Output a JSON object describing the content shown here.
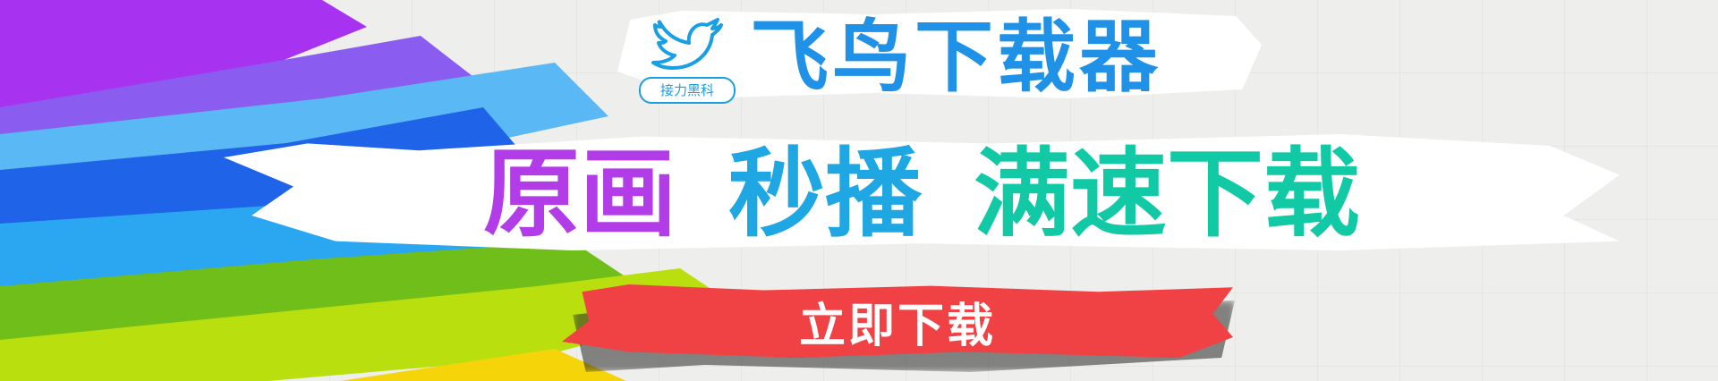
{
  "brand": {
    "app_title": "飞鸟下载器",
    "logo_tag": "接力黑科"
  },
  "slogan": {
    "part1": "原画",
    "part2": "秒播",
    "part3": "满速下载"
  },
  "cta": {
    "download_label": "立即下载"
  },
  "icons": [
    "bird-logo-icon"
  ],
  "colors": {
    "title_blue": "#1f92e8",
    "slogan_purple": "#b23ce8",
    "slogan_blue": "#1fa7e4",
    "slogan_teal": "#12c9a6",
    "cta_red": "#f04245"
  }
}
